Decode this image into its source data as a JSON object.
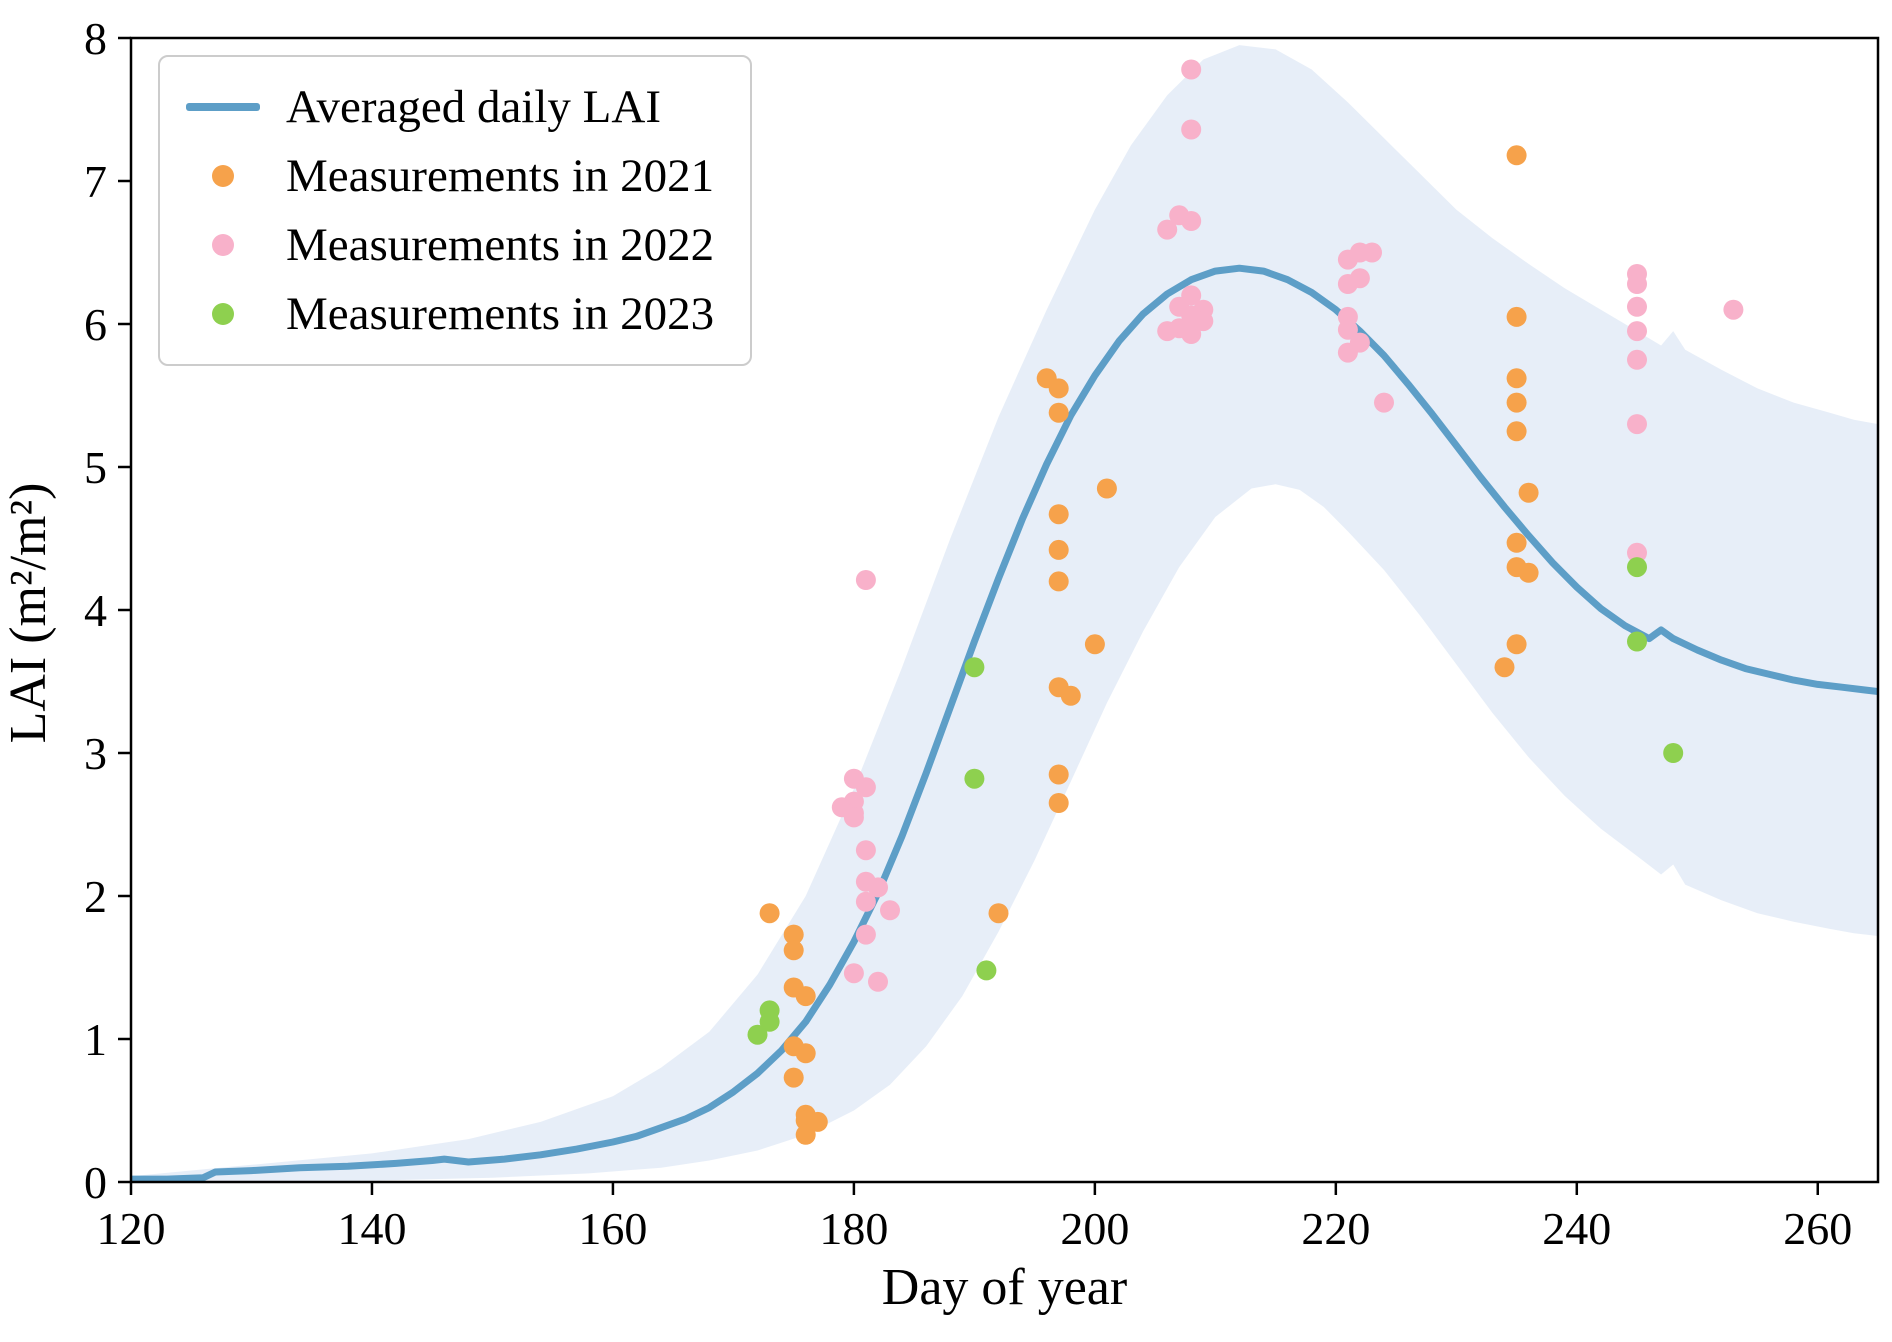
{
  "chart_data": {
    "type": "line",
    "title": "",
    "xlabel": "Day of year",
    "ylabel": "LAI (m²/m²)",
    "xlim": [
      120,
      265
    ],
    "ylim": [
      0,
      8
    ],
    "xticks": [
      120,
      140,
      160,
      180,
      200,
      220,
      240,
      260
    ],
    "yticks": [
      0,
      1,
      2,
      3,
      4,
      5,
      6,
      7,
      8
    ],
    "grid": false,
    "legend_position": "upper-left",
    "colors": {
      "line": "#5D9EC7",
      "band": "#C9D9EF",
      "s2021": "#F6A24B",
      "s2022": "#F8B1CA",
      "s2023": "#8ED04F"
    },
    "legend": [
      {
        "label": "Averaged daily LAI",
        "type": "line",
        "color_key": "line"
      },
      {
        "label": "Measurements in 2021",
        "type": "dot",
        "color_key": "s2021"
      },
      {
        "label": "Measurements in 2022",
        "type": "dot",
        "color_key": "s2022"
      },
      {
        "label": "Measurements in 2023",
        "type": "dot",
        "color_key": "s2023"
      }
    ],
    "line_series": {
      "name": "Averaged daily LAI",
      "points": [
        [
          120,
          0.02
        ],
        [
          123,
          0.02
        ],
        [
          126,
          0.03
        ],
        [
          127,
          0.07
        ],
        [
          130,
          0.08
        ],
        [
          134,
          0.1
        ],
        [
          138,
          0.11
        ],
        [
          142,
          0.13
        ],
        [
          145,
          0.15
        ],
        [
          146,
          0.16
        ],
        [
          148,
          0.14
        ],
        [
          151,
          0.16
        ],
        [
          154,
          0.19
        ],
        [
          157,
          0.23
        ],
        [
          160,
          0.28
        ],
        [
          162,
          0.32
        ],
        [
          164,
          0.38
        ],
        [
          166,
          0.44
        ],
        [
          168,
          0.52
        ],
        [
          170,
          0.63
        ],
        [
          172,
          0.76
        ],
        [
          174,
          0.92
        ],
        [
          176,
          1.12
        ],
        [
          178,
          1.38
        ],
        [
          180,
          1.68
        ],
        [
          182,
          2.02
        ],
        [
          184,
          2.42
        ],
        [
          186,
          2.86
        ],
        [
          188,
          3.32
        ],
        [
          190,
          3.78
        ],
        [
          192,
          4.22
        ],
        [
          194,
          4.64
        ],
        [
          196,
          5.02
        ],
        [
          198,
          5.36
        ],
        [
          200,
          5.64
        ],
        [
          202,
          5.88
        ],
        [
          204,
          6.07
        ],
        [
          206,
          6.21
        ],
        [
          208,
          6.31
        ],
        [
          210,
          6.37
        ],
        [
          212,
          6.39
        ],
        [
          214,
          6.37
        ],
        [
          216,
          6.31
        ],
        [
          218,
          6.22
        ],
        [
          220,
          6.1
        ],
        [
          222,
          5.95
        ],
        [
          224,
          5.78
        ],
        [
          226,
          5.58
        ],
        [
          228,
          5.37
        ],
        [
          230,
          5.15
        ],
        [
          232,
          4.93
        ],
        [
          234,
          4.72
        ],
        [
          236,
          4.52
        ],
        [
          238,
          4.33
        ],
        [
          240,
          4.16
        ],
        [
          242,
          4.01
        ],
        [
          244,
          3.89
        ],
        [
          246,
          3.8
        ],
        [
          247,
          3.86
        ],
        [
          248,
          3.8
        ],
        [
          250,
          3.72
        ],
        [
          252,
          3.65
        ],
        [
          254,
          3.59
        ],
        [
          256,
          3.55
        ],
        [
          258,
          3.51
        ],
        [
          260,
          3.48
        ],
        [
          262,
          3.46
        ],
        [
          264,
          3.44
        ],
        [
          265,
          3.43
        ]
      ]
    },
    "band": {
      "upper": [
        [
          120,
          0.04
        ],
        [
          130,
          0.12
        ],
        [
          140,
          0.2
        ],
        [
          148,
          0.3
        ],
        [
          154,
          0.42
        ],
        [
          160,
          0.6
        ],
        [
          164,
          0.8
        ],
        [
          168,
          1.05
        ],
        [
          172,
          1.45
        ],
        [
          176,
          2.0
        ],
        [
          180,
          2.75
        ],
        [
          184,
          3.6
        ],
        [
          188,
          4.5
        ],
        [
          192,
          5.35
        ],
        [
          196,
          6.1
        ],
        [
          200,
          6.8
        ],
        [
          203,
          7.25
        ],
        [
          206,
          7.6
        ],
        [
          209,
          7.85
        ],
        [
          212,
          7.95
        ],
        [
          215,
          7.92
        ],
        [
          218,
          7.78
        ],
        [
          221,
          7.55
        ],
        [
          224,
          7.3
        ],
        [
          227,
          7.05
        ],
        [
          230,
          6.8
        ],
        [
          233,
          6.6
        ],
        [
          236,
          6.42
        ],
        [
          239,
          6.25
        ],
        [
          242,
          6.1
        ],
        [
          245,
          5.95
        ],
        [
          247,
          5.85
        ],
        [
          248,
          5.95
        ],
        [
          249,
          5.82
        ],
        [
          252,
          5.68
        ],
        [
          255,
          5.55
        ],
        [
          258,
          5.45
        ],
        [
          261,
          5.38
        ],
        [
          263,
          5.33
        ],
        [
          265,
          5.3
        ]
      ],
      "lower": [
        [
          120,
          0.0
        ],
        [
          140,
          0.01
        ],
        [
          150,
          0.03
        ],
        [
          158,
          0.06
        ],
        [
          164,
          0.1
        ],
        [
          168,
          0.15
        ],
        [
          172,
          0.22
        ],
        [
          176,
          0.33
        ],
        [
          180,
          0.5
        ],
        [
          183,
          0.68
        ],
        [
          186,
          0.95
        ],
        [
          189,
          1.3
        ],
        [
          192,
          1.75
        ],
        [
          195,
          2.25
        ],
        [
          198,
          2.8
        ],
        [
          201,
          3.35
        ],
        [
          204,
          3.85
        ],
        [
          207,
          4.3
        ],
        [
          210,
          4.65
        ],
        [
          213,
          4.85
        ],
        [
          215,
          4.88
        ],
        [
          217,
          4.84
        ],
        [
          219,
          4.72
        ],
        [
          221,
          4.55
        ],
        [
          224,
          4.28
        ],
        [
          227,
          3.96
        ],
        [
          230,
          3.62
        ],
        [
          233,
          3.28
        ],
        [
          236,
          2.97
        ],
        [
          239,
          2.7
        ],
        [
          242,
          2.47
        ],
        [
          245,
          2.28
        ],
        [
          247,
          2.15
        ],
        [
          248,
          2.22
        ],
        [
          249,
          2.08
        ],
        [
          252,
          1.97
        ],
        [
          255,
          1.88
        ],
        [
          258,
          1.82
        ],
        [
          261,
          1.77
        ],
        [
          263,
          1.74
        ],
        [
          265,
          1.72
        ]
      ]
    },
    "scatter_series": [
      {
        "name": "Measurements in 2021",
        "color_key": "s2021",
        "points": [
          [
            173,
            1.88
          ],
          [
            175,
            1.73
          ],
          [
            175,
            1.62
          ],
          [
            175,
            1.36
          ],
          [
            176,
            1.3
          ],
          [
            175,
            0.95
          ],
          [
            176,
            0.9
          ],
          [
            175,
            0.73
          ],
          [
            176,
            0.47
          ],
          [
            176,
            0.43
          ],
          [
            177,
            0.42
          ],
          [
            176,
            0.33
          ],
          [
            192,
            1.88
          ],
          [
            196,
            5.62
          ],
          [
            197,
            5.55
          ],
          [
            197,
            5.38
          ],
          [
            197,
            4.67
          ],
          [
            197,
            4.42
          ],
          [
            197,
            4.2
          ],
          [
            197,
            3.46
          ],
          [
            198,
            3.4
          ],
          [
            197,
            2.85
          ],
          [
            197,
            2.65
          ],
          [
            201,
            4.85
          ],
          [
            200,
            3.76
          ],
          [
            235,
            7.18
          ],
          [
            235,
            6.05
          ],
          [
            235,
            5.62
          ],
          [
            235,
            5.45
          ],
          [
            235,
            5.25
          ],
          [
            236,
            4.82
          ],
          [
            235,
            4.47
          ],
          [
            235,
            4.3
          ],
          [
            236,
            4.26
          ],
          [
            235,
            3.76
          ],
          [
            234,
            3.6
          ]
        ]
      },
      {
        "name": "Measurements in 2022",
        "color_key": "s2022",
        "points": [
          [
            181,
            4.21
          ],
          [
            180,
            2.82
          ],
          [
            181,
            2.76
          ],
          [
            180,
            2.66
          ],
          [
            179,
            2.62
          ],
          [
            180,
            2.58
          ],
          [
            180,
            2.55
          ],
          [
            181,
            2.32
          ],
          [
            181,
            2.1
          ],
          [
            182,
            2.06
          ],
          [
            181,
            1.96
          ],
          [
            183,
            1.9
          ],
          [
            181,
            1.73
          ],
          [
            180,
            1.46
          ],
          [
            182,
            1.4
          ],
          [
            208,
            7.78
          ],
          [
            208,
            7.36
          ],
          [
            207,
            6.76
          ],
          [
            208,
            6.72
          ],
          [
            206,
            6.66
          ],
          [
            208,
            6.2
          ],
          [
            207,
            6.12
          ],
          [
            209,
            6.1
          ],
          [
            208,
            6.06
          ],
          [
            209,
            6.02
          ],
          [
            207,
            5.97
          ],
          [
            206,
            5.95
          ],
          [
            208,
            5.93
          ],
          [
            222,
            6.5
          ],
          [
            223,
            6.5
          ],
          [
            221,
            6.45
          ],
          [
            222,
            6.32
          ],
          [
            221,
            6.28
          ],
          [
            221,
            6.05
          ],
          [
            221,
            5.96
          ],
          [
            222,
            5.87
          ],
          [
            221,
            5.8
          ],
          [
            224,
            5.45
          ],
          [
            245,
            6.35
          ],
          [
            245,
            6.28
          ],
          [
            245,
            6.12
          ],
          [
            245,
            5.95
          ],
          [
            245,
            5.75
          ],
          [
            245,
            5.3
          ],
          [
            245,
            4.4
          ],
          [
            253,
            6.1
          ]
        ]
      },
      {
        "name": "Measurements in 2023",
        "color_key": "s2023",
        "points": [
          [
            173,
            1.2
          ],
          [
            173,
            1.12
          ],
          [
            172,
            1.03
          ],
          [
            190,
            3.6
          ],
          [
            190,
            2.82
          ],
          [
            191,
            1.48
          ],
          [
            245,
            4.3
          ],
          [
            245,
            3.78
          ],
          [
            248,
            3.0
          ]
        ]
      }
    ]
  }
}
